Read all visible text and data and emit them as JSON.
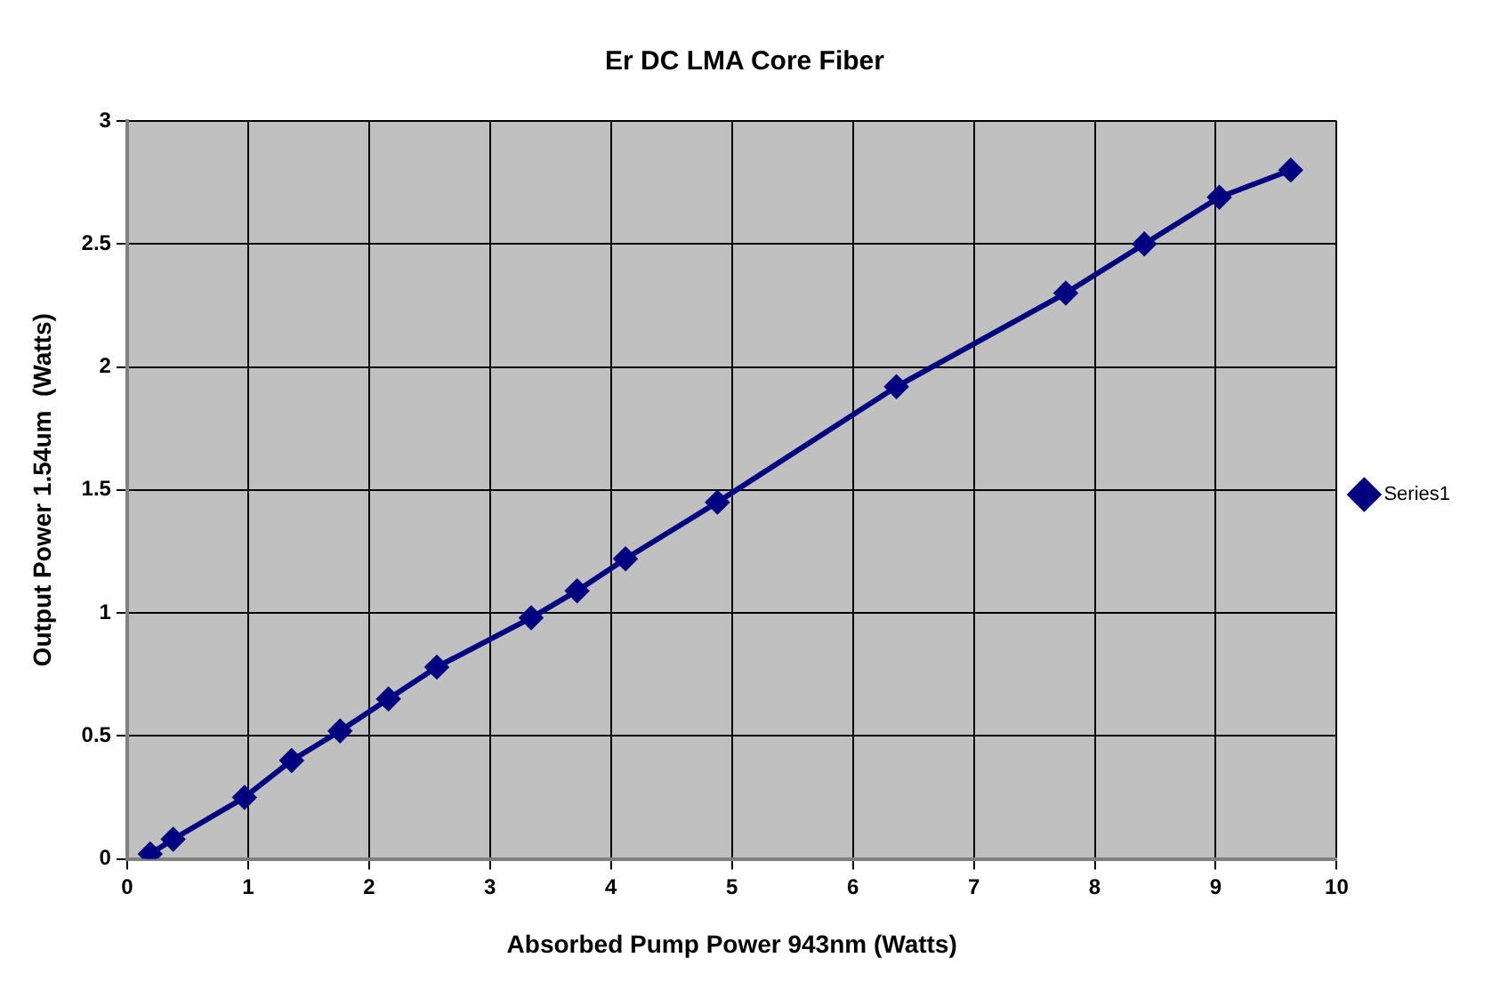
{
  "chart_data": {
    "type": "line",
    "title": "Er DC LMA Core Fiber",
    "xlabel": "Absorbed Pump Power 943nm (Watts)",
    "ylabel": "Output Power 1.54um  (Watts)",
    "series": [
      {
        "name": "Series1",
        "color": "#000080",
        "x": [
          0.19,
          0.38,
          0.97,
          1.36,
          1.76,
          2.16,
          2.56,
          3.34,
          3.72,
          4.12,
          4.88,
          6.36,
          7.76,
          8.41,
          9.03,
          9.62
        ],
        "values": [
          0.02,
          0.08,
          0.25,
          0.4,
          0.52,
          0.65,
          0.78,
          0.98,
          1.09,
          1.22,
          1.45,
          1.92,
          2.3,
          2.5,
          2.69,
          2.8
        ]
      }
    ],
    "xlim": [
      0,
      10
    ],
    "xticks": [
      0,
      1,
      2,
      3,
      4,
      5,
      6,
      7,
      8,
      9,
      10
    ],
    "ylim": [
      0,
      3
    ],
    "yticks": [
      0,
      0.5,
      1,
      1.5,
      2,
      2.5,
      3
    ],
    "grid": true,
    "legend": "right",
    "marker": "diamond",
    "line_style": "solid"
  }
}
